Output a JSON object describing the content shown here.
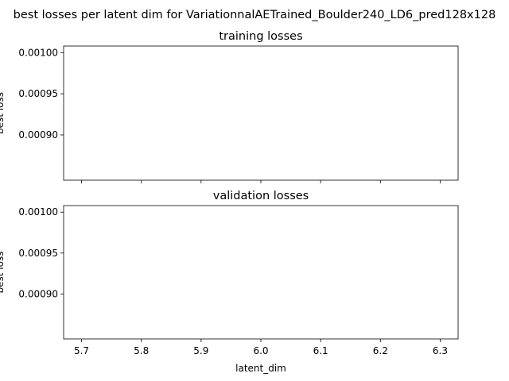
{
  "figure": {
    "suptitle": "best losses per latent dim for VariationnalAETrained_Boulder240_LD6_pred128x128"
  },
  "chart_data": [
    {
      "type": "line",
      "title": "training losses",
      "xlabel": "",
      "ylabel": "best loss",
      "xlim": [
        5.67,
        6.33
      ],
      "ylim": [
        0.000845,
        0.001008
      ],
      "xticks": [
        5.7,
        5.8,
        5.9,
        6.0,
        6.1,
        6.2,
        6.3
      ],
      "xtick_labels": [
        "",
        "",
        "",
        "",
        "",
        "",
        ""
      ],
      "yticks": [
        0.0009,
        0.00095,
        0.001
      ],
      "ytick_labels": [
        "0.00090",
        "0.00095",
        "0.00100"
      ],
      "series": [],
      "grid": false
    },
    {
      "type": "line",
      "title": "validation losses",
      "xlabel": "latent_dim",
      "ylabel": "best loss",
      "xlim": [
        5.67,
        6.33
      ],
      "ylim": [
        0.000845,
        0.001008
      ],
      "xticks": [
        5.7,
        5.8,
        5.9,
        6.0,
        6.1,
        6.2,
        6.3
      ],
      "xtick_labels": [
        "5.7",
        "5.8",
        "5.9",
        "6.0",
        "6.1",
        "6.2",
        "6.3"
      ],
      "yticks": [
        0.0009,
        0.00095,
        0.001
      ],
      "ytick_labels": [
        "0.00090",
        "0.00095",
        "0.00100"
      ],
      "series": [],
      "grid": false
    }
  ]
}
